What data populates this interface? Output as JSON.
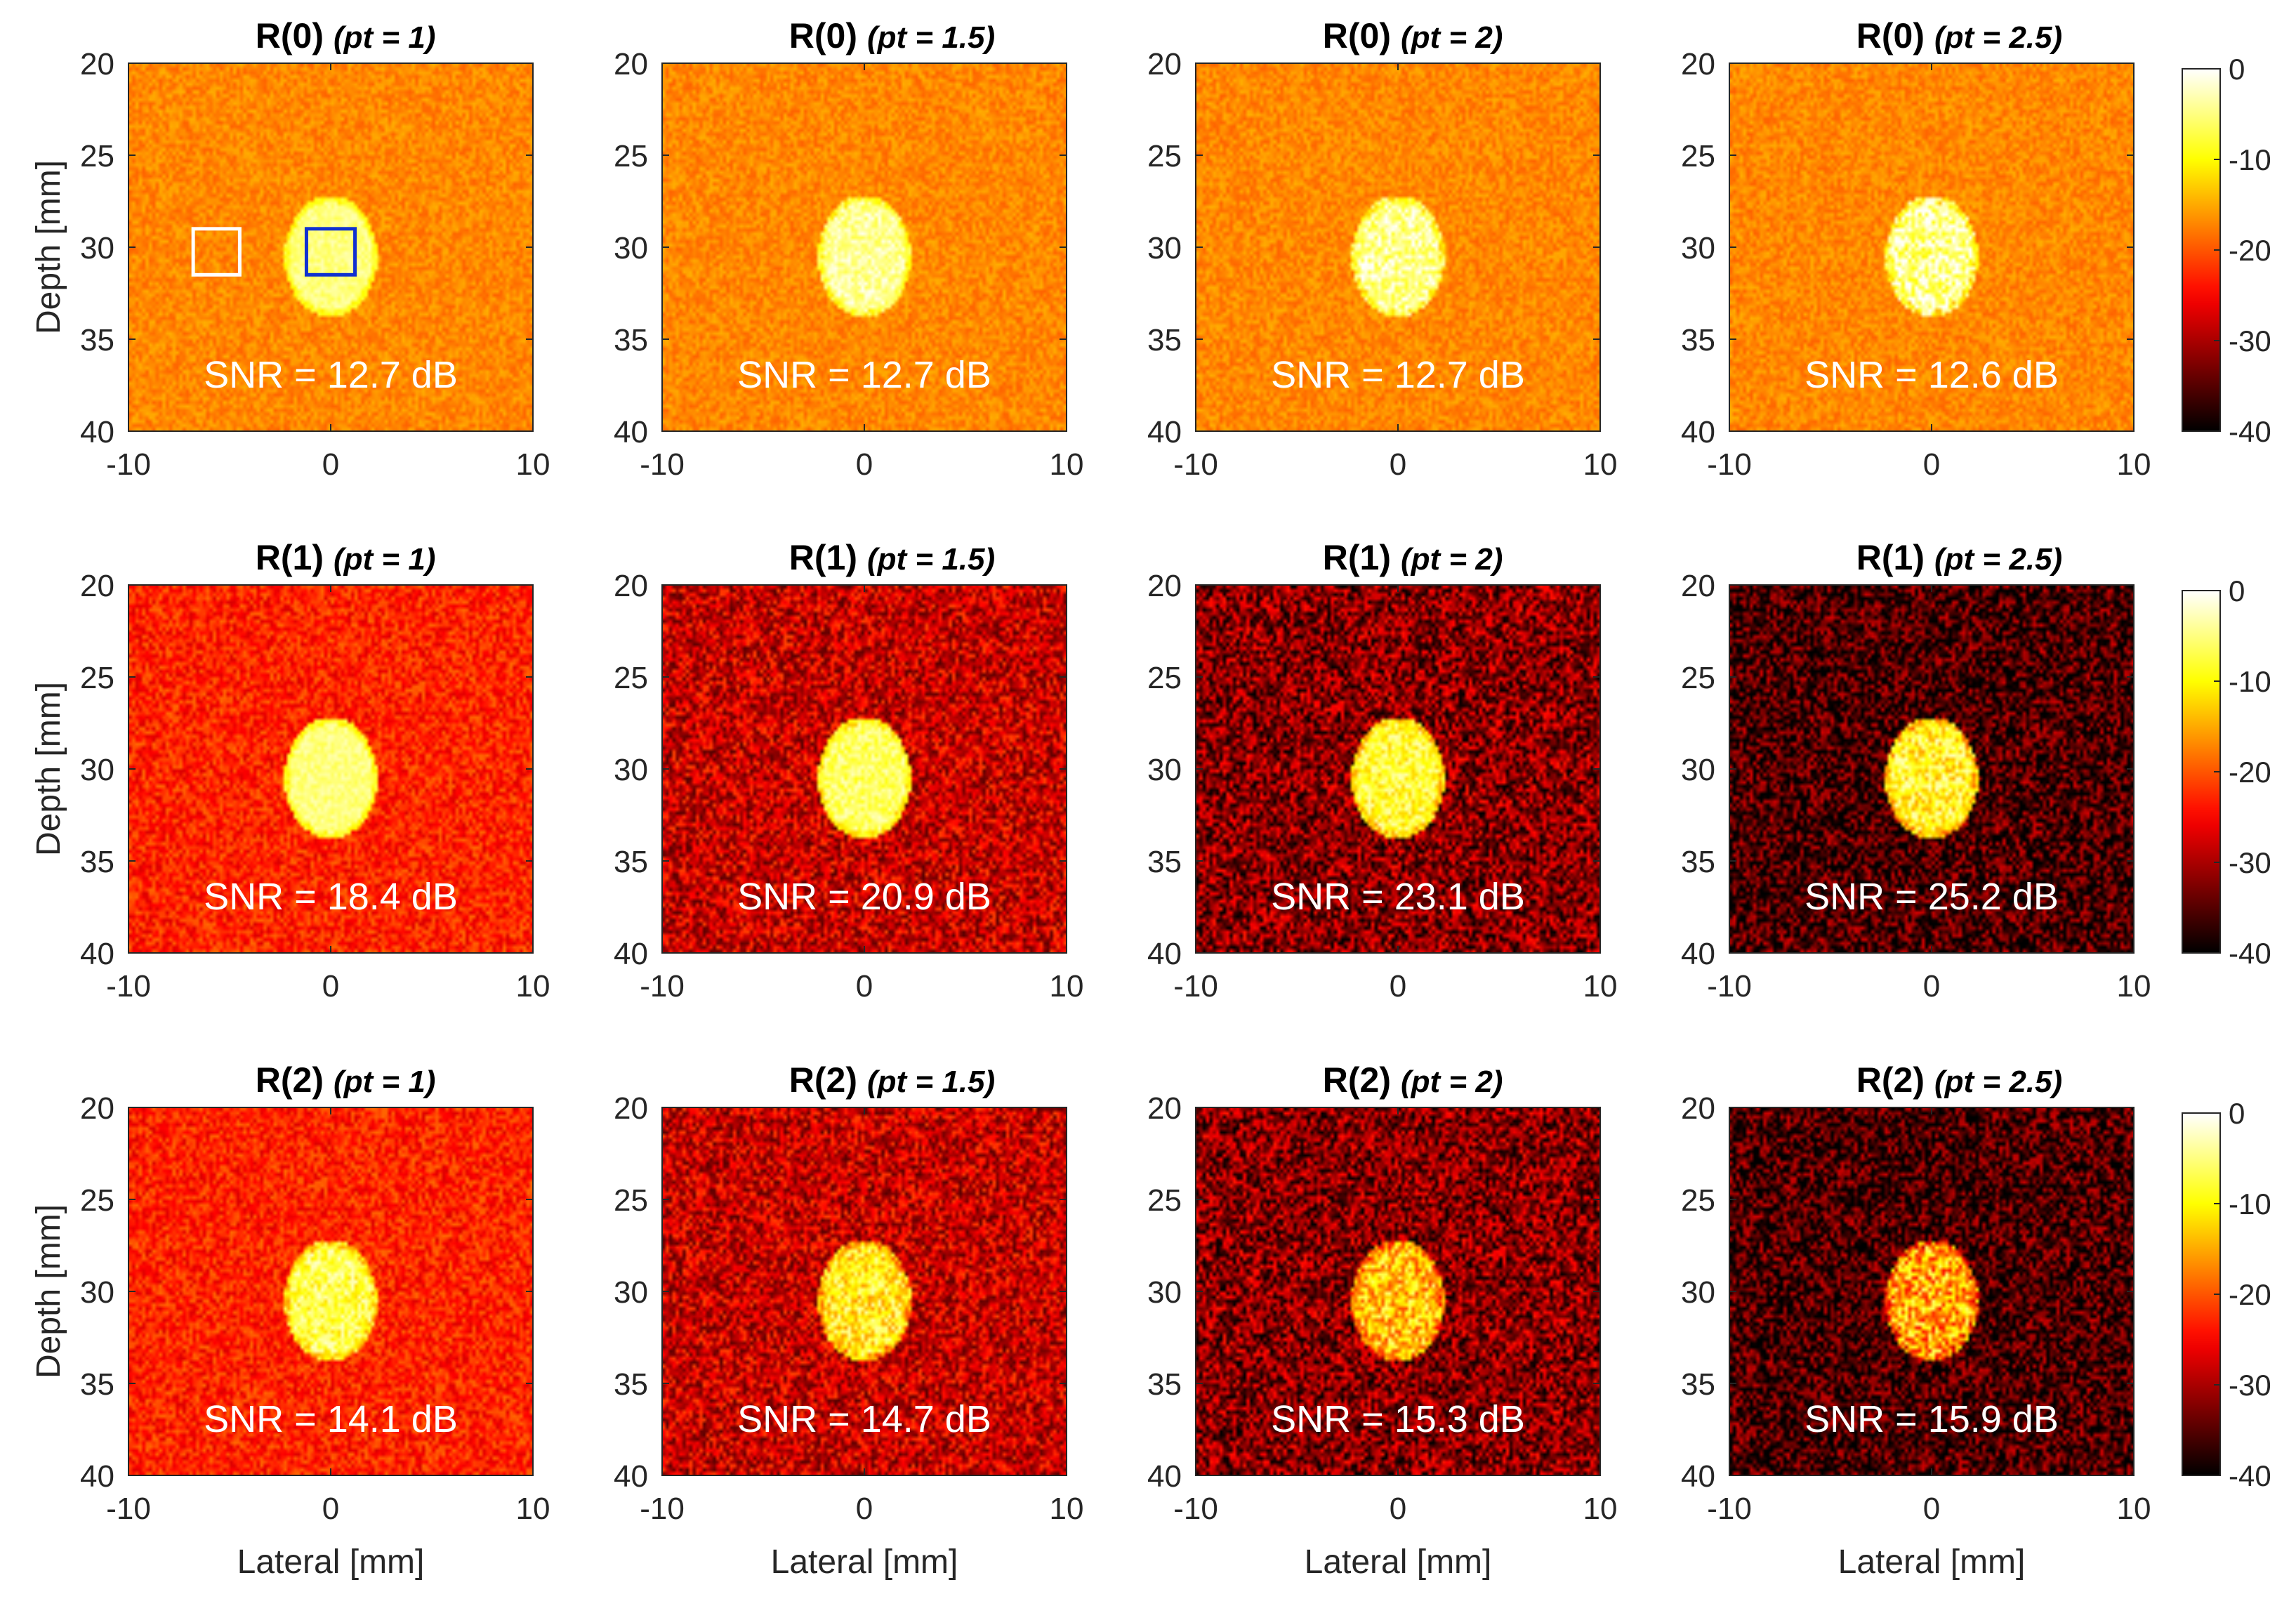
{
  "figure": {
    "xlabel": "Lateral [mm]",
    "ylabel": "Depth [mm]",
    "xticks": [
      "-10",
      "0",
      "10"
    ],
    "yticks": [
      "20",
      "25",
      "30",
      "35",
      "40"
    ],
    "colorbar_ticks": [
      "0",
      "-10",
      "-20",
      "-30",
      "-40"
    ]
  },
  "chart_data": {
    "type": "heatmap",
    "xlabel": "Lateral [mm]",
    "ylabel": "Depth [mm]",
    "xlim": [
      -10,
      10
    ],
    "ylim": [
      20,
      40
    ],
    "y_reversed": true,
    "colormap": "hot",
    "colorbar": {
      "range": [
        -40,
        0
      ],
      "ticks": [
        0,
        -10,
        -20,
        -30,
        -40
      ]
    },
    "inclusion": {
      "center_lateral_mm": 0,
      "center_depth_mm": 30.5,
      "width_mm": 4.6,
      "height_mm": 6.6
    },
    "roi_boxes": [
      {
        "color": "#ffffff",
        "lateral_mm": [
          -6.8,
          -4.5
        ],
        "depth_mm": [
          29.0,
          31.5
        ],
        "panel": "R(0) (pt = 1)"
      },
      {
        "color": "#1030d0",
        "lateral_mm": [
          -1.2,
          1.2
        ],
        "depth_mm": [
          29.0,
          31.5
        ],
        "panel": "R(0) (pt = 1)"
      }
    ],
    "panels": [
      {
        "row": 0,
        "col": 0,
        "title_main": "R(0)",
        "title_pt": "(pt = 1)",
        "snr": "SNR = 12.7 dB",
        "snr_db": 12.7,
        "background_db": -17,
        "background_spread_db": 1.6,
        "lesion_db": -5
      },
      {
        "row": 0,
        "col": 1,
        "title_main": "R(0)",
        "title_pt": "(pt = 1.5)",
        "snr": "SNR = 12.7 dB",
        "snr_db": 12.7,
        "background_db": -17,
        "background_spread_db": 1.6,
        "lesion_db": -4
      },
      {
        "row": 0,
        "col": 2,
        "title_main": "R(0)",
        "title_pt": "(pt = 2)",
        "snr": "SNR = 12.7 dB",
        "snr_db": 12.7,
        "background_db": -17,
        "background_spread_db": 1.6,
        "lesion_db": -4
      },
      {
        "row": 0,
        "col": 3,
        "title_main": "R(0)",
        "title_pt": "(pt = 2.5)",
        "snr": "SNR = 12.6 dB",
        "snr_db": 12.6,
        "background_db": -17,
        "background_spread_db": 1.6,
        "lesion_db": -4
      },
      {
        "row": 1,
        "col": 0,
        "title_main": "R(1)",
        "title_pt": "(pt = 1)",
        "snr": "SNR = 18.4 dB",
        "snr_db": 18.4,
        "background_db": -23,
        "background_spread_db": 3,
        "lesion_db": -5
      },
      {
        "row": 1,
        "col": 1,
        "title_main": "R(1)",
        "title_pt": "(pt = 1.5)",
        "snr": "SNR = 20.9 dB",
        "snr_db": 20.9,
        "background_db": -28,
        "background_spread_db": 5,
        "lesion_db": -6
      },
      {
        "row": 1,
        "col": 2,
        "title_main": "R(1)",
        "title_pt": "(pt = 2)",
        "snr": "SNR = 23.1 dB",
        "snr_db": 23.1,
        "background_db": -32,
        "background_spread_db": 6,
        "lesion_db": -8
      },
      {
        "row": 1,
        "col": 3,
        "title_main": "R(1)",
        "title_pt": "(pt = 2.5)",
        "snr": "SNR = 25.2 dB",
        "snr_db": 25.2,
        "background_db": -36,
        "background_spread_db": 6,
        "lesion_db": -9
      },
      {
        "row": 2,
        "col": 0,
        "title_main": "R(2)",
        "title_pt": "(pt = 1)",
        "snr": "SNR = 14.1 dB",
        "snr_db": 14.1,
        "background_db": -23,
        "background_spread_db": 3,
        "lesion_db": -7
      },
      {
        "row": 2,
        "col": 1,
        "title_main": "R(2)",
        "title_pt": "(pt = 1.5)",
        "snr": "SNR = 14.7 dB",
        "snr_db": 14.7,
        "background_db": -28,
        "background_spread_db": 5,
        "lesion_db": -10
      },
      {
        "row": 2,
        "col": 2,
        "title_main": "R(2)",
        "title_pt": "(pt = 2)",
        "snr": "SNR = 15.3 dB",
        "snr_db": 15.3,
        "background_db": -32,
        "background_spread_db": 6,
        "lesion_db": -13
      },
      {
        "row": 2,
        "col": 3,
        "title_main": "R(2)",
        "title_pt": "(pt = 2.5)",
        "snr": "SNR = 15.9 dB",
        "snr_db": 15.9,
        "background_db": -36,
        "background_spread_db": 6,
        "lesion_db": -15
      }
    ]
  }
}
